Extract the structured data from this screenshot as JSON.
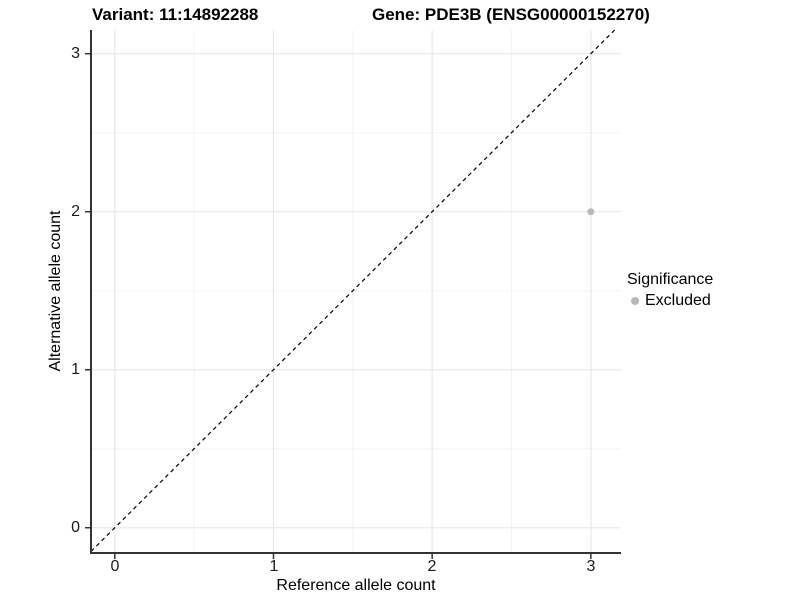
{
  "chart_data": {
    "type": "scatter",
    "titles": {
      "left": "Variant: 11:14892288",
      "right": "Gene: PDE3B (ENSG00000152270)"
    },
    "xlabel": "Reference allele count",
    "ylabel": "Alternative allele count",
    "xlim": [
      -0.15,
      3.19
    ],
    "ylim": [
      -0.16,
      3.15
    ],
    "x_ticks": [
      0,
      1,
      2,
      3
    ],
    "y_ticks": [
      0,
      1,
      2,
      3
    ],
    "x_tick_labels": [
      "0",
      "1",
      "2",
      "3"
    ],
    "y_tick_labels": [
      "0",
      "1",
      "2",
      "3"
    ],
    "x_minor_ticks": [
      0.5,
      1.5,
      2.5
    ],
    "y_minor_ticks": [
      0.5,
      1.5,
      2.5
    ],
    "grid": true,
    "reference_line": {
      "type": "abline",
      "slope": 1,
      "intercept": 0,
      "style": "dashed",
      "color": "#000000"
    },
    "series": [
      {
        "name": "Excluded",
        "color": "#b8b8b8",
        "points": [
          {
            "x": 3,
            "y": 2
          }
        ]
      }
    ],
    "legend": {
      "title": "Significance",
      "position": "right",
      "entries": [
        {
          "label": "Excluded",
          "color": "#b8b8b8"
        }
      ]
    },
    "colors": {
      "background": "#ffffff",
      "major_grid": "#e8e8e8",
      "minor_grid": "#f3f3f3",
      "axis_line": "#333333",
      "point": "#b8b8b8"
    }
  }
}
